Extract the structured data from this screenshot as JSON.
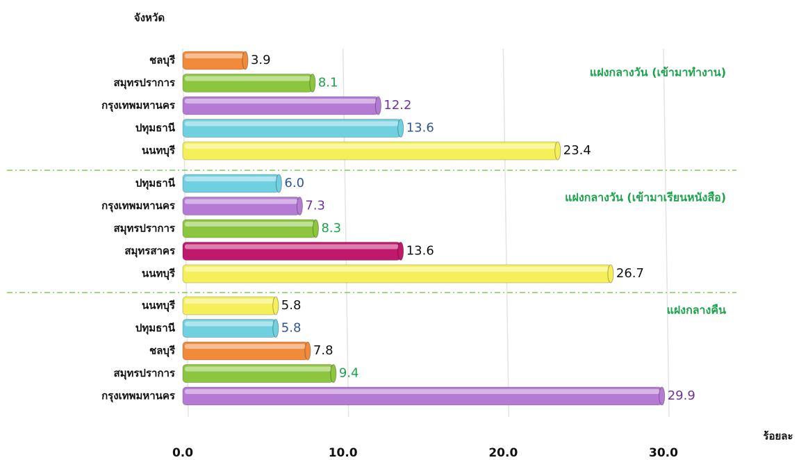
{
  "chart_data": {
    "type": "bar",
    "orientation": "horizontal",
    "y_label": "จังหวัด",
    "x_label": "ร้อยละ",
    "xlim": [
      0,
      30
    ],
    "xticks": [
      {
        "value": 0,
        "label": "0.0"
      },
      {
        "value": 10,
        "label": "10.0"
      },
      {
        "value": 20,
        "label": "20.0"
      },
      {
        "value": 30,
        "label": "30.0"
      }
    ],
    "grid": true,
    "groups": [
      {
        "name": "แฝงกลางวัน (เข้ามาทำงาน)",
        "categories": [
          "ชลบุรี",
          "สมุทรปราการ",
          "กรุงเทพมหานคร",
          "ปทุมธานี",
          "นนทบุรี"
        ],
        "values": [
          3.9,
          8.1,
          12.2,
          13.6,
          23.4
        ],
        "value_labels": [
          "3.9",
          "8.1",
          "12.2",
          "13.6",
          "23.4"
        ],
        "colors": [
          "#f28a3c",
          "#8cc63f",
          "#b57ad4",
          "#6fd0e0",
          "#f5f05a"
        ],
        "label_colors": [
          "#111111",
          "#1aa34a",
          "#7030a0",
          "#2f5597",
          "#111111"
        ]
      },
      {
        "name": "แฝงกลางวัน (เข้ามาเรียนหนังสือ)",
        "categories": [
          "ปทุมธานี",
          "กรุงเทพมหานคร",
          "สมุทรปราการ",
          "สมุทรสาคร",
          "นนทบุรี"
        ],
        "values": [
          6.0,
          7.3,
          8.3,
          13.6,
          26.7
        ],
        "value_labels": [
          "6.0",
          "7.3",
          "8.3",
          "13.6",
          "26.7"
        ],
        "colors": [
          "#6fd0e0",
          "#b57ad4",
          "#8cc63f",
          "#c0186b",
          "#f5f05a"
        ],
        "label_colors": [
          "#2f5597",
          "#7030a0",
          "#1aa34a",
          "#111111",
          "#111111"
        ]
      },
      {
        "name": "แฝงกลางคืน",
        "categories": [
          "นนทบุรี",
          "ปทุมธานี",
          "ชลบุรี",
          "สมุทรปราการ",
          "กรุงเทพมหานคร"
        ],
        "values": [
          5.8,
          5.8,
          7.8,
          9.4,
          29.9
        ],
        "value_labels": [
          "5.8",
          "5.8",
          "7.8",
          "9.4",
          "29.9"
        ],
        "colors": [
          "#f5f05a",
          "#6fd0e0",
          "#f28a3c",
          "#8cc63f",
          "#b57ad4"
        ],
        "label_colors": [
          "#111111",
          "#2f5597",
          "#111111",
          "#1aa34a",
          "#7030a0"
        ]
      }
    ]
  }
}
